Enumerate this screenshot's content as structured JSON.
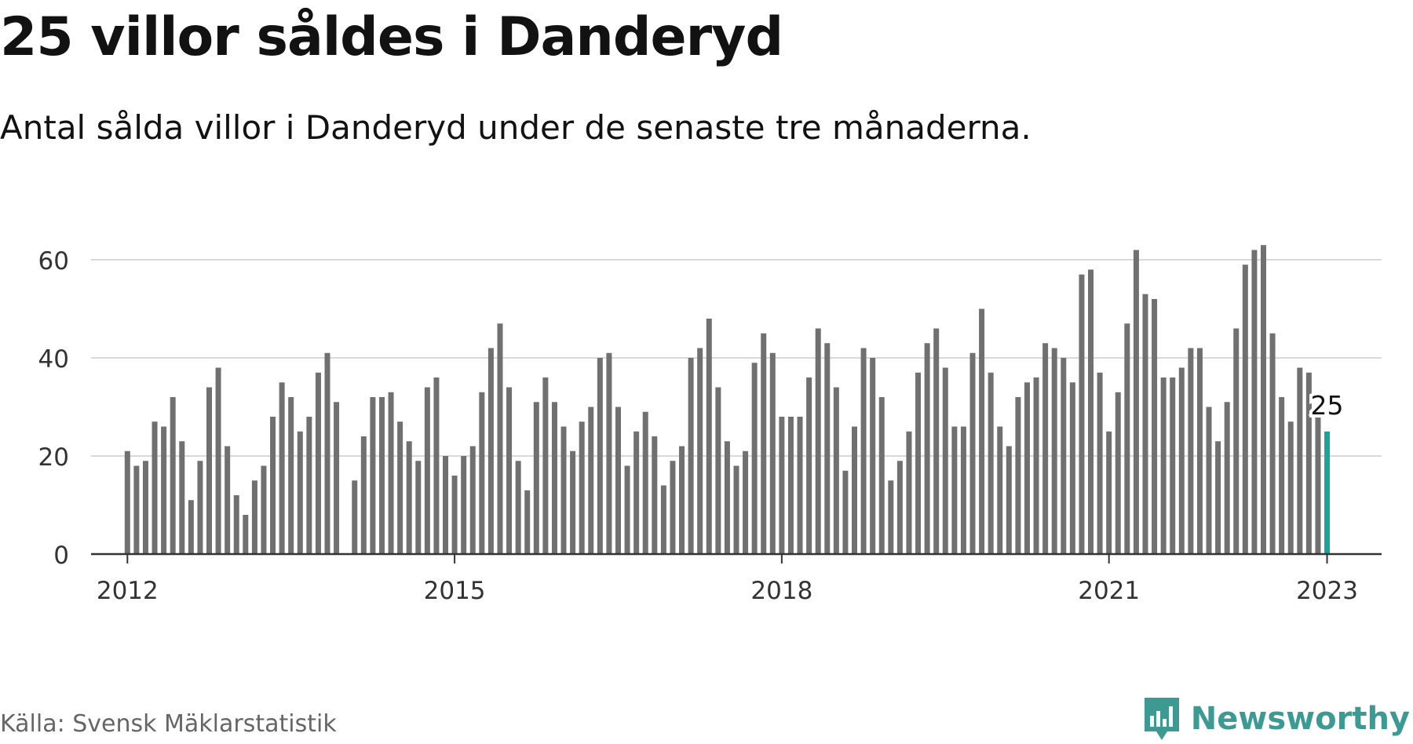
{
  "title": "25 villor såldes i Danderyd",
  "subtitle": "Antal sålda villor i Danderyd under de senaste tre månaderna.",
  "source": "Källa: Svensk Mäklarstatistik",
  "brand": {
    "name": "Newsworthy",
    "icon": "newsworthy-logo-icon",
    "color": "#3c9a93"
  },
  "chart_data": {
    "type": "bar",
    "title": "25 villor såldes i Danderyd",
    "subtitle": "Antal sålda villor i Danderyd under de senaste tre månaderna.",
    "xlabel": "",
    "ylabel": "",
    "ylim": [
      0,
      70
    ],
    "yticks": [
      0,
      20,
      40,
      60
    ],
    "xlim": [
      "2011-09",
      "2023-07"
    ],
    "xticks": [
      {
        "label": "2012",
        "x": "2012-01"
      },
      {
        "label": "2015",
        "x": "2015-01"
      },
      {
        "label": "2018",
        "x": "2018-01"
      },
      {
        "label": "2021",
        "x": "2021-01"
      },
      {
        "label": "2023",
        "x": "2023-01"
      }
    ],
    "grid": true,
    "bar_color": "#707070",
    "highlight_color": "#1aa39a",
    "annotation": {
      "x": "2023-01",
      "label": "25"
    },
    "series": [
      {
        "x": [
          "2012-01",
          "2012-02",
          "2012-03",
          "2012-04",
          "2012-05",
          "2012-06",
          "2012-07",
          "2012-08",
          "2012-09",
          "2012-10",
          "2012-11",
          "2012-12",
          "2013-01",
          "2013-02",
          "2013-03",
          "2013-04",
          "2013-05",
          "2013-06",
          "2013-07",
          "2013-08",
          "2013-09",
          "2013-10",
          "2013-11",
          "2013-12",
          "2014-01",
          "2014-02",
          "2014-03",
          "2014-04",
          "2014-05",
          "2014-06",
          "2014-07",
          "2014-08",
          "2014-09",
          "2014-10",
          "2014-11",
          "2014-12",
          "2015-01",
          "2015-02",
          "2015-03",
          "2015-04",
          "2015-05",
          "2015-06",
          "2015-07",
          "2015-08",
          "2015-09",
          "2015-10",
          "2015-11",
          "2015-12",
          "2016-01",
          "2016-02",
          "2016-03",
          "2016-04",
          "2016-05",
          "2016-06",
          "2016-07",
          "2016-08",
          "2016-09",
          "2016-10",
          "2016-11",
          "2016-12",
          "2017-01",
          "2017-02",
          "2017-03",
          "2017-04",
          "2017-05",
          "2017-06",
          "2017-07",
          "2017-08",
          "2017-09",
          "2017-10",
          "2017-11",
          "2017-12",
          "2018-01",
          "2018-02",
          "2018-03",
          "2018-04",
          "2018-05",
          "2018-06",
          "2018-07",
          "2018-08",
          "2018-09",
          "2018-10",
          "2018-11",
          "2018-12",
          "2019-01",
          "2019-02",
          "2019-03",
          "2019-04",
          "2019-05",
          "2019-06",
          "2019-07",
          "2019-08",
          "2019-09",
          "2019-10",
          "2019-11",
          "2019-12",
          "2020-01",
          "2020-02",
          "2020-03",
          "2020-04",
          "2020-05",
          "2020-06",
          "2020-07",
          "2020-08",
          "2020-09",
          "2020-10",
          "2020-11",
          "2020-12",
          "2021-01",
          "2021-02",
          "2021-03",
          "2021-04",
          "2021-05",
          "2021-06",
          "2021-07",
          "2021-08",
          "2021-09",
          "2021-10",
          "2021-11",
          "2021-12",
          "2022-01",
          "2022-02",
          "2022-03",
          "2022-04",
          "2022-05",
          "2022-06",
          "2022-07",
          "2022-08",
          "2022-09",
          "2022-10",
          "2022-11",
          "2022-12",
          "2023-01"
        ],
        "values": [
          21,
          18,
          19,
          27,
          26,
          32,
          23,
          11,
          19,
          34,
          38,
          22,
          12,
          8,
          15,
          18,
          28,
          35,
          32,
          25,
          28,
          37,
          41,
          31,
          null,
          15,
          24,
          32,
          32,
          33,
          27,
          23,
          19,
          34,
          36,
          20,
          16,
          20,
          22,
          33,
          42,
          47,
          34,
          19,
          13,
          31,
          36,
          31,
          26,
          21,
          27,
          30,
          40,
          41,
          30,
          18,
          25,
          29,
          24,
          14,
          19,
          22,
          40,
          42,
          48,
          34,
          23,
          18,
          21,
          39,
          45,
          41,
          28,
          28,
          28,
          36,
          46,
          43,
          34,
          17,
          26,
          42,
          40,
          32,
          15,
          19,
          25,
          37,
          43,
          46,
          38,
          26,
          26,
          41,
          50,
          37,
          26,
          22,
          32,
          35,
          36,
          43,
          42,
          40,
          35,
          57,
          58,
          37,
          25,
          33,
          47,
          62,
          53,
          52,
          36,
          36,
          38,
          42,
          42,
          30,
          23,
          31,
          46,
          59,
          62,
          63,
          45,
          32,
          27,
          38,
          37,
          28,
          25
        ]
      }
    ]
  }
}
